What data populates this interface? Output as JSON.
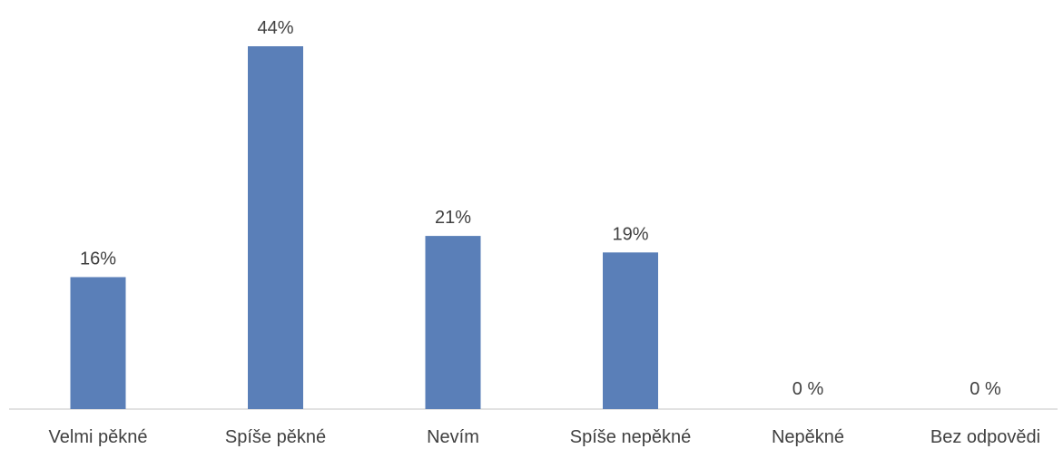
{
  "chart_data": {
    "type": "bar",
    "categories": [
      "Velmi pěkné",
      "Spíše pěkné",
      "Nevím",
      "Spíše nepěkné",
      "Nepěkné",
      "Bez odpovědi"
    ],
    "values": [
      16,
      44,
      21,
      19,
      0,
      0
    ],
    "data_labels": [
      "16%",
      "44%",
      "21%",
      "19%",
      "0 %",
      "0 %"
    ],
    "unit": "%",
    "title": "",
    "xlabel": "",
    "ylabel": "",
    "ylim": [
      0,
      44
    ],
    "grid": false,
    "legend": "none",
    "colors": {
      "bar": "#5a7fb8",
      "axis": "#d9d9d9",
      "text": "#404040"
    }
  }
}
